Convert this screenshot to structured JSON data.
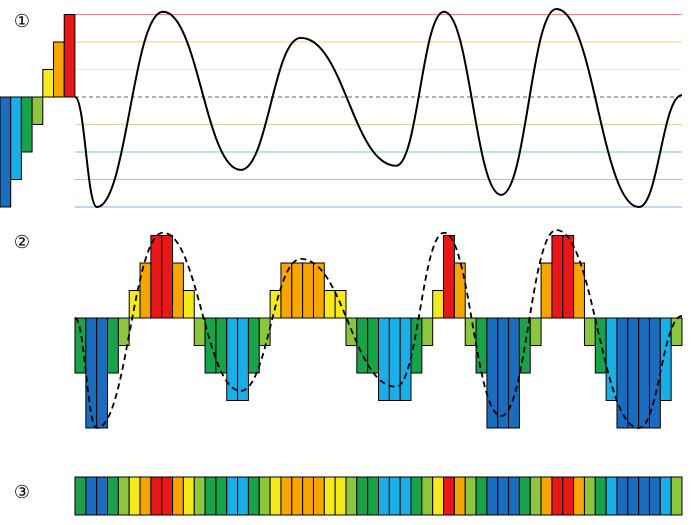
{
  "labels": [
    "①",
    "②",
    "③"
  ],
  "levels": [
    -4,
    -3,
    -2,
    -1,
    1,
    2,
    3
  ],
  "colors": [
    "#1a6cbf",
    "#1aaee6",
    "#1aa24a",
    "#8cc63f",
    "#f7ea1c",
    "#f7a600",
    "#e81818"
  ],
  "symbols": [
    -2,
    -4,
    -4,
    -2,
    -1,
    1,
    2,
    3,
    3,
    2,
    1,
    -1,
    -2,
    -2,
    -3,
    -3,
    -2,
    -1,
    1,
    2,
    2,
    2,
    2,
    1,
    1,
    -1,
    -2,
    -2,
    -3,
    -3,
    -3,
    -2,
    -1,
    1,
    3,
    2,
    -1,
    -2,
    -4,
    -4,
    -4,
    -2,
    -1,
    2,
    3,
    3,
    2,
    -1,
    -2,
    -3,
    -4,
    -4,
    -4,
    -4,
    -3,
    -1
  ],
  "signal": {
    "t": [
      0,
      3.6,
      14.5,
      27.3,
      37.2,
      52.9,
      60.8,
      70.2,
      79.3,
      92.9,
      100
    ],
    "v": [
      0,
      -4,
      3.1,
      -2.65,
      2.15,
      -2.5,
      3.1,
      -3.56,
      3.2,
      -4,
      0.07
    ]
  }
}
